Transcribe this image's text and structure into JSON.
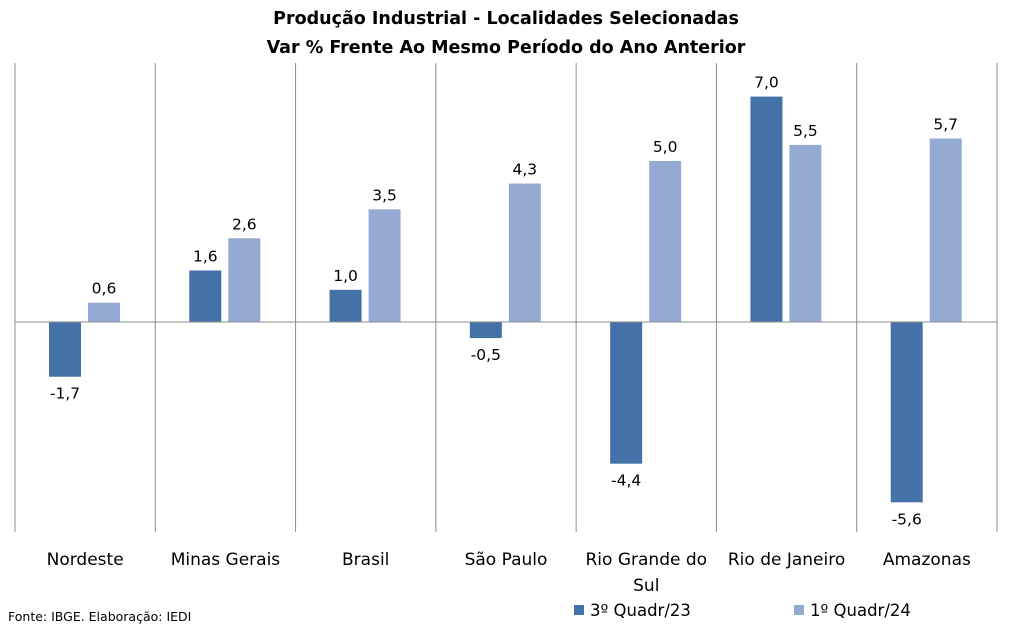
{
  "chart_data": {
    "type": "bar",
    "title": "Produção Industrial - Localidades Selecionadas",
    "subtitle": "Var % Frente Ao Mesmo Período do Ano Anterior",
    "categories": [
      [
        "Nordeste"
      ],
      [
        "Minas Gerais"
      ],
      [
        "Brasil"
      ],
      [
        "São Paulo"
      ],
      [
        "Rio Grande do",
        "Sul"
      ],
      [
        "Rio de Janeiro"
      ],
      [
        "Amazonas"
      ]
    ],
    "series": [
      {
        "name": "3º Quadr/23",
        "color": "#4472A8",
        "values": [
          -1.7,
          1.6,
          1.0,
          -0.5,
          -4.4,
          7.0,
          -5.6
        ],
        "labels": [
          "-1,7",
          "1,6",
          "1,0",
          "-0,5",
          "-4,4",
          "7,0",
          "-5,6"
        ]
      },
      {
        "name": "1º Quadr/24",
        "color": "#95AAD3",
        "values": [
          0.6,
          2.6,
          3.5,
          4.3,
          5.0,
          5.5,
          5.7
        ],
        "labels": [
          "0,6",
          "2,6",
          "3,5",
          "4,3",
          "5,0",
          "5,5",
          "5,7"
        ]
      }
    ],
    "legend_position": "bottom-right",
    "grid": false
  },
  "source": "Fonte: IBGE. Elaboração: IEDI"
}
